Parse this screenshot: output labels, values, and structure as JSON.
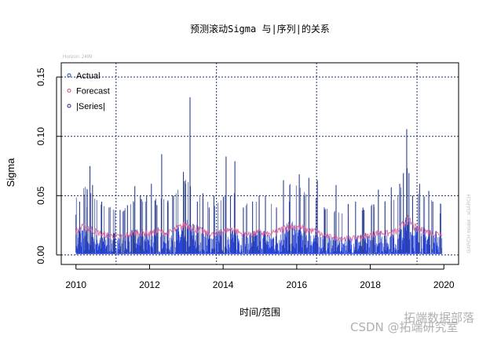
{
  "chart_data": {
    "type": "line",
    "title": "预测滚动Sigma 与|序列|的关系",
    "subtitle": "Horizon: 2499",
    "xlabel": "时间/范围",
    "ylabel": "Sigma",
    "side_note": "GARCH model : sGARCH",
    "xlim": [
      2009.6,
      2020.4
    ],
    "ylim": [
      -0.008,
      0.162
    ],
    "x_ticks": [
      2010,
      2012,
      2014,
      2016,
      2018,
      2020
    ],
    "x_tick_labels": [
      "2010",
      "2012",
      "2014",
      "2016",
      "2018",
      "2020"
    ],
    "y_ticks": [
      0.0,
      0.05,
      0.1,
      0.15
    ],
    "y_tick_labels": [
      "0.00",
      "0.05",
      "0.10",
      "0.15"
    ],
    "grid": {
      "style": "dotted",
      "y": [
        0.0,
        0.05,
        0.1,
        0.15
      ],
      "x": [
        2011.09,
        2013.82,
        2016.54,
        2019.27
      ]
    },
    "legend": {
      "placement": "top-left",
      "entries": [
        {
          "label": "Actual",
          "color": "#1f4e8c"
        },
        {
          "label": "Forecast",
          "color": "#c0506e"
        },
        {
          "label": "|Series|",
          "color": "#1a237e"
        }
      ]
    },
    "series": [
      {
        "name": "Forecast",
        "color": "#e0609a",
        "resolution": "quarterly",
        "x_start": 2010.0,
        "values": [
          0.02,
          0.024,
          0.02,
          0.017,
          0.016,
          0.015,
          0.018,
          0.019,
          0.018,
          0.02,
          0.018,
          0.022,
          0.026,
          0.022,
          0.019,
          0.017,
          0.02,
          0.022,
          0.018,
          0.017,
          0.019,
          0.017,
          0.02,
          0.024,
          0.024,
          0.021,
          0.02,
          0.016,
          0.015,
          0.014,
          0.014,
          0.015,
          0.017,
          0.019,
          0.018,
          0.02,
          0.03,
          0.022,
          0.02,
          0.018
        ]
      },
      {
        "name": "|Series|",
        "color": "#2a46e0",
        "spike_color": "#2c3f8f",
        "x_end": 2019.95,
        "spikes": [
          [
            2010.0,
            0.034
          ],
          [
            2010.1,
            0.045
          ],
          [
            2010.22,
            0.051
          ],
          [
            2010.3,
            0.04
          ],
          [
            2010.38,
            0.075
          ],
          [
            2010.45,
            0.059
          ],
          [
            2010.7,
            0.045
          ],
          [
            2010.9,
            0.04
          ],
          [
            2011.2,
            0.038
          ],
          [
            2011.4,
            0.042
          ],
          [
            2011.6,
            0.058
          ],
          [
            2011.75,
            0.05
          ],
          [
            2011.92,
            0.05
          ],
          [
            2012.05,
            0.06
          ],
          [
            2012.2,
            0.042
          ],
          [
            2012.33,
            0.085
          ],
          [
            2012.5,
            0.046
          ],
          [
            2012.65,
            0.05
          ],
          [
            2012.92,
            0.07
          ],
          [
            2012.98,
            0.06
          ],
          [
            2013.1,
            0.133
          ],
          [
            2013.3,
            0.045
          ],
          [
            2013.45,
            0.052
          ],
          [
            2013.62,
            0.04
          ],
          [
            2013.75,
            0.05
          ],
          [
            2014.08,
            0.083
          ],
          [
            2014.2,
            0.05
          ],
          [
            2014.32,
            0.079
          ],
          [
            2014.55,
            0.04
          ],
          [
            2014.8,
            0.045
          ],
          [
            2014.98,
            0.05
          ],
          [
            2015.15,
            0.05
          ],
          [
            2015.45,
            0.04
          ],
          [
            2015.64,
            0.063
          ],
          [
            2015.8,
            0.045
          ],
          [
            2016.07,
            0.068
          ],
          [
            2016.2,
            0.05
          ],
          [
            2016.33,
            0.065
          ],
          [
            2016.56,
            0.063
          ],
          [
            2016.75,
            0.04
          ],
          [
            2017.07,
            0.059
          ],
          [
            2017.4,
            0.043
          ],
          [
            2017.6,
            0.045
          ],
          [
            2017.8,
            0.04
          ],
          [
            2018.1,
            0.04
          ],
          [
            2018.22,
            0.055
          ],
          [
            2018.4,
            0.045
          ],
          [
            2018.57,
            0.057
          ],
          [
            2018.8,
            0.06
          ],
          [
            2018.9,
            0.069
          ],
          [
            2018.99,
            0.106
          ],
          [
            2019.05,
            0.069
          ],
          [
            2019.15,
            0.05
          ],
          [
            2019.34,
            0.06
          ],
          [
            2019.59,
            0.054
          ],
          [
            2019.7,
            0.045
          ],
          [
            2019.9,
            0.035
          ]
        ]
      }
    ]
  },
  "watermark": {
    "line1": "拓端数据部落",
    "line2": "CSDN @拓端研究室"
  }
}
